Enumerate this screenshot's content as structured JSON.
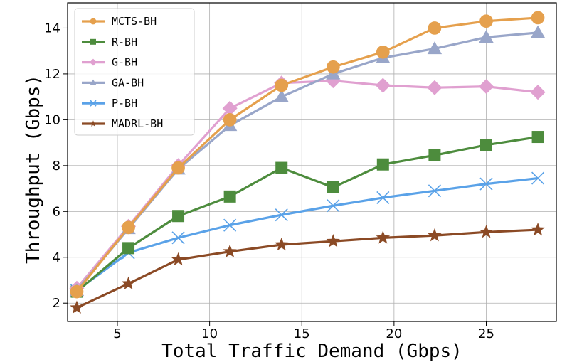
{
  "chart_data": {
    "type": "line",
    "title": "",
    "xlabel": "Total Traffic Demand (Gbps)",
    "ylabel": "Throughput (Gbps)",
    "xlim": [
      2.3,
      28.8
    ],
    "ylim": [
      1.2,
      15.1
    ],
    "xticks": [
      5,
      10,
      15,
      20,
      25
    ],
    "yticks": [
      2,
      4,
      6,
      8,
      10,
      12,
      14
    ],
    "grid": true,
    "legend_position": "top-left",
    "x": [
      2.8,
      5.6,
      8.3,
      11.1,
      13.9,
      16.7,
      19.4,
      22.2,
      25.0,
      27.8
    ],
    "series": [
      {
        "name": "MCTS-BH",
        "color": "#e5a04d",
        "marker": "circle",
        "values": [
          2.5,
          5.3,
          7.9,
          10.0,
          11.5,
          12.3,
          12.95,
          14.0,
          14.3,
          14.45
        ]
      },
      {
        "name": "R-BH",
        "color": "#4d8c3d",
        "marker": "square",
        "values": [
          2.5,
          4.4,
          5.8,
          6.65,
          7.9,
          7.05,
          8.05,
          8.45,
          8.9,
          9.25
        ]
      },
      {
        "name": "G-BH",
        "color": "#e0a0d0",
        "marker": "diamond",
        "values": [
          2.65,
          5.35,
          8.0,
          10.5,
          11.6,
          11.7,
          11.5,
          11.4,
          11.45,
          11.2
        ]
      },
      {
        "name": "GA-BH",
        "color": "#99a6c9",
        "marker": "triangle",
        "values": [
          2.55,
          5.25,
          7.85,
          9.75,
          11.0,
          12.0,
          12.7,
          13.1,
          13.6,
          13.8
        ]
      },
      {
        "name": "P-BH",
        "color": "#5aa2e8",
        "marker": "x",
        "values": [
          2.55,
          4.2,
          4.85,
          5.4,
          5.85,
          6.25,
          6.6,
          6.9,
          7.2,
          7.45
        ]
      },
      {
        "name": "MADRL-BH",
        "color": "#8b4a25",
        "marker": "star",
        "values": [
          1.8,
          2.85,
          3.9,
          4.25,
          4.55,
          4.7,
          4.85,
          4.95,
          5.1,
          5.2
        ]
      }
    ]
  }
}
